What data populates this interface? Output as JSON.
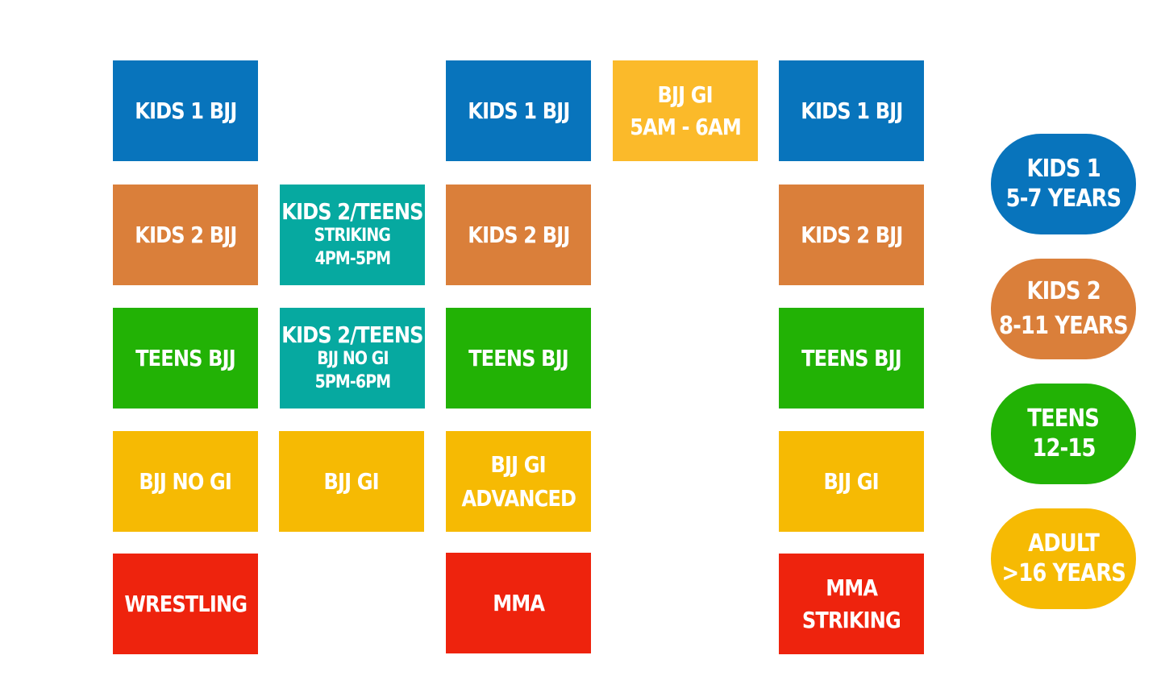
{
  "schedule": {
    "colors": {
      "kids1": "#0874BC",
      "kids2": "#DA7F3A",
      "teens_combo": "#06A9A0",
      "teens": "#22B205",
      "adult": "#F6BA03",
      "adult_morning": "#FBBA2A",
      "combat": "#EE230D"
    },
    "col1": {
      "kids1": "KIDS 1 BJJ",
      "kids2": "KIDS 2 BJJ",
      "teens": "TEENS BJJ",
      "adult": "BJJ NO GI",
      "combat": "WRESTLING"
    },
    "col2": {
      "striking": {
        "title": "KIDS 2/TEENS",
        "sub": "STRIKING",
        "time": "4PM-5PM"
      },
      "nogi": {
        "title": "KIDS 2/TEENS",
        "sub": "BJJ NO GI",
        "time": "5PM-6PM"
      },
      "adult": "BJJ GI"
    },
    "col3": {
      "kids1": "KIDS 1 BJJ",
      "kids2": "KIDS 2 BJJ",
      "teens": "TEENS BJJ",
      "adult_line1": "BJJ GI",
      "adult_line2": "ADVANCED",
      "combat": "MMA"
    },
    "col4": {
      "morning_line1": "BJJ GI",
      "morning_line2": "5AM - 6AM"
    },
    "col5": {
      "kids1": "KIDS 1 BJJ",
      "kids2": "KIDS 2 BJJ",
      "teens": "TEENS BJJ",
      "adult": "BJJ GI",
      "combat_line1": "MMA",
      "combat_line2": "STRIKING"
    }
  },
  "legend": [
    {
      "line1": "KIDS 1",
      "line2": "5-7 YEARS",
      "color": "#0874BC"
    },
    {
      "line1": "KIDS 2",
      "line2": "8-11 YEARS",
      "color": "#DA7F3A"
    },
    {
      "line1": "TEENS",
      "line2": "12-15",
      "color": "#22B205"
    },
    {
      "line1": "ADULT",
      "line2": ">16 YEARS",
      "color": "#F6BA03"
    }
  ]
}
